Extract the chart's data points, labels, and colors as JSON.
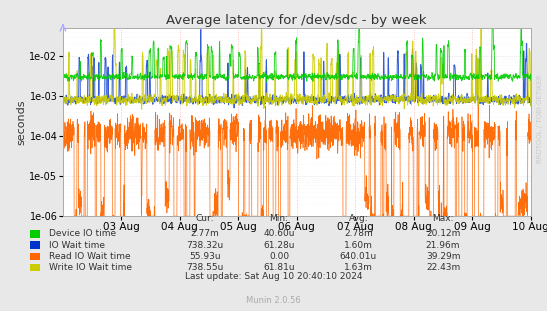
{
  "title": "Average latency for /dev/sdc - by week",
  "ylabel": "seconds",
  "watermark": "RRDTOOL / TOBI OETIKER",
  "munin_version": "Munin 2.0.56",
  "bg_color": "#e8e8e8",
  "plot_bg_color": "#ffffff",
  "xmin": 0,
  "xmax": 691200,
  "ymin": 1e-06,
  "ymax": 0.05,
  "xticks_labels": [
    "03 Aug",
    "04 Aug",
    "05 Aug",
    "06 Aug",
    "07 Aug",
    "08 Aug",
    "09 Aug",
    "10 Aug"
  ],
  "xticks_pos": [
    86400,
    172800,
    259200,
    345600,
    432000,
    518400,
    604800,
    691200
  ],
  "legend": [
    {
      "label": "Device IO time",
      "color": "#00cc00"
    },
    {
      "label": "IO Wait time",
      "color": "#0033cc"
    },
    {
      "label": "Read IO Wait time",
      "color": "#ff6600"
    },
    {
      "label": "Write IO Wait time",
      "color": "#cccc00"
    }
  ],
  "legend_table": {
    "headers": [
      "Cur:",
      "Min:",
      "Avg:",
      "Max:"
    ],
    "rows": [
      [
        "Device IO time",
        "2.77m",
        "40.60u",
        "2.78m",
        "20.12m"
      ],
      [
        "IO Wait time",
        "738.32u",
        "61.28u",
        "1.60m",
        "21.96m"
      ],
      [
        "Read IO Wait time",
        "55.93u",
        "0.00",
        "640.01u",
        "39.29m"
      ],
      [
        "Write IO Wait time",
        "738.55u",
        "61.81u",
        "1.63m",
        "22.43m"
      ]
    ]
  },
  "last_update": "Last update: Sat Aug 10 20:40:10 2024"
}
